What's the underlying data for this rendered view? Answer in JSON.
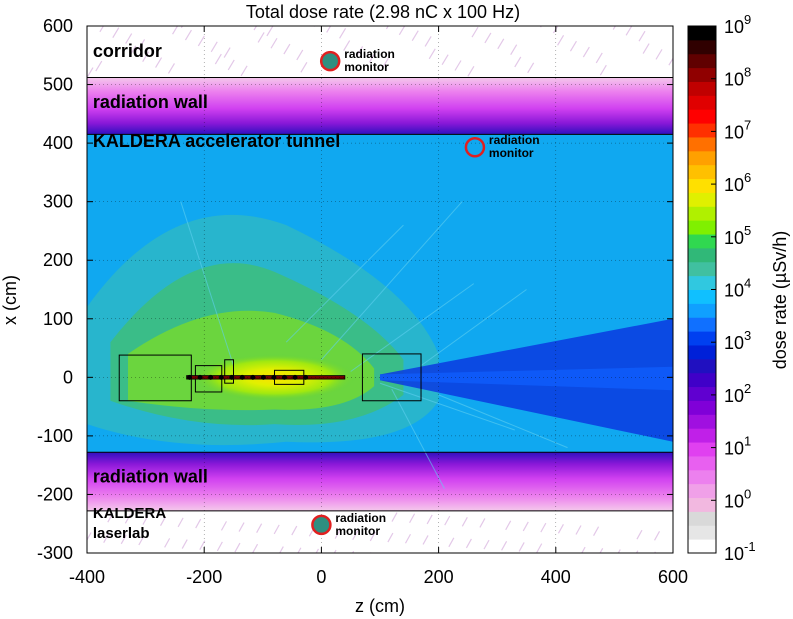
{
  "chart_data": {
    "type": "heatmap",
    "title": "Total dose rate (2.98 nC x 100 Hz)",
    "xlabel": "z (cm)",
    "ylabel": "x (cm)",
    "xlim": [
      -400,
      600
    ],
    "ylim": [
      -300,
      600
    ],
    "x_ticks": [
      -400,
      -200,
      0,
      200,
      400,
      600
    ],
    "y_ticks": [
      -300,
      -200,
      -100,
      0,
      100,
      200,
      300,
      400,
      500,
      600
    ],
    "grid": true,
    "colorbar": {
      "label": "dose rate (µSv/h)",
      "scale": "log",
      "range": [
        0.1,
        1000000000
      ],
      "tick_exponents": [
        "-1",
        "0",
        "1",
        "2",
        "3",
        "4",
        "5",
        "6",
        "7",
        "8",
        "9"
      ],
      "tick_base": "10",
      "colors": [
        "#ffffff",
        "#e6e6e6",
        "#d9d9d9",
        "#f2b8e0",
        "#f0a0e8",
        "#ec80ee",
        "#e860f0",
        "#e040f0",
        "#c020e8",
        "#a010e0",
        "#8000d8",
        "#6000d0",
        "#4000c8",
        "#2010c0",
        "#0020d8",
        "#0040f0",
        "#1070ff",
        "#10a0ff",
        "#10c0ff",
        "#30c8e0",
        "#40c0a0",
        "#30b878",
        "#30d850",
        "#80f000",
        "#b0f000",
        "#e0f000",
        "#ffe000",
        "#ffc000",
        "#ffa000",
        "#ff7000",
        "#ff3000",
        "#ff0000",
        "#e00000",
        "#c00000",
        "#900000",
        "#600000",
        "#300000",
        "#000000"
      ]
    },
    "regions": [
      {
        "name": "corridor",
        "x_range": [
          512,
          600
        ]
      },
      {
        "name": "radiation wall",
        "x_range": [
          415,
          512
        ]
      },
      {
        "name": "KALDERA accelerator tunnel",
        "x_range": [
          -128,
          415
        ]
      },
      {
        "name": "radiation wall",
        "x_range": [
          -228,
          -128
        ]
      },
      {
        "name": "KALDERA laserlab",
        "x_range": [
          -300,
          -228
        ]
      }
    ],
    "annotations": [
      {
        "text": "corridor"
      },
      {
        "text": "radiation wall"
      },
      {
        "text": "KALDERA accelerator tunnel"
      },
      {
        "text": "radiation wall"
      },
      {
        "text": "KALDERA laserlab"
      }
    ],
    "radiation_monitors": [
      {
        "label": "radiation monitor",
        "z": 15,
        "x": 540
      },
      {
        "label": "radiation monitor",
        "z": 262,
        "x": 393
      },
      {
        "label": "radiation monitor",
        "z": 0,
        "x": -252
      }
    ],
    "dose_levels": {
      "corridor": 0.1,
      "wall_inner_face": 100,
      "tunnel_background": 3000,
      "downstream_shadow": 500,
      "beamline_max": 1000000
    }
  },
  "colors": {
    "tunnel_bg": "#10a8f0",
    "wall_core": "#5a10c8",
    "wall_mid": "#d040f0",
    "wall_outer": "#f0a0e8",
    "shadow": "#0a3ae0",
    "green_halo": "#40c070",
    "yellow_core": "#d8f000",
    "monitor_fill": "#2f8f80",
    "monitor_ring": "#e02020"
  }
}
